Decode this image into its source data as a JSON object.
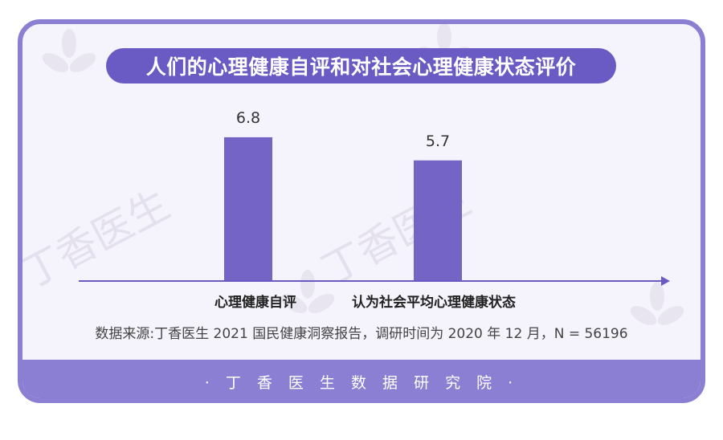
{
  "title": "人们的心理健康自评和对社会心理健康状态评价",
  "source_note": "数据来源:丁香医生 2021 国民健康洞察报告，调研时间为 2020 年 12 月，N = 56196",
  "footer": "· 丁 香 医 生 数 据 研 究 院 ·",
  "watermark": "丁香医生",
  "colors": {
    "bar": "#7464c5",
    "axis": "#6a5bc4",
    "accent": "#8b7fd4"
  },
  "chart_data": {
    "type": "bar",
    "categories": [
      "心理健康自评",
      "认为社会平均心理健康状态"
    ],
    "values": [
      6.8,
      5.7
    ],
    "data_labels": [
      "6.8",
      "5.7"
    ],
    "title": "人们的心理健康自评和对社会心理健康状态评价",
    "ylim": [
      0,
      7.6
    ],
    "grid": false
  }
}
